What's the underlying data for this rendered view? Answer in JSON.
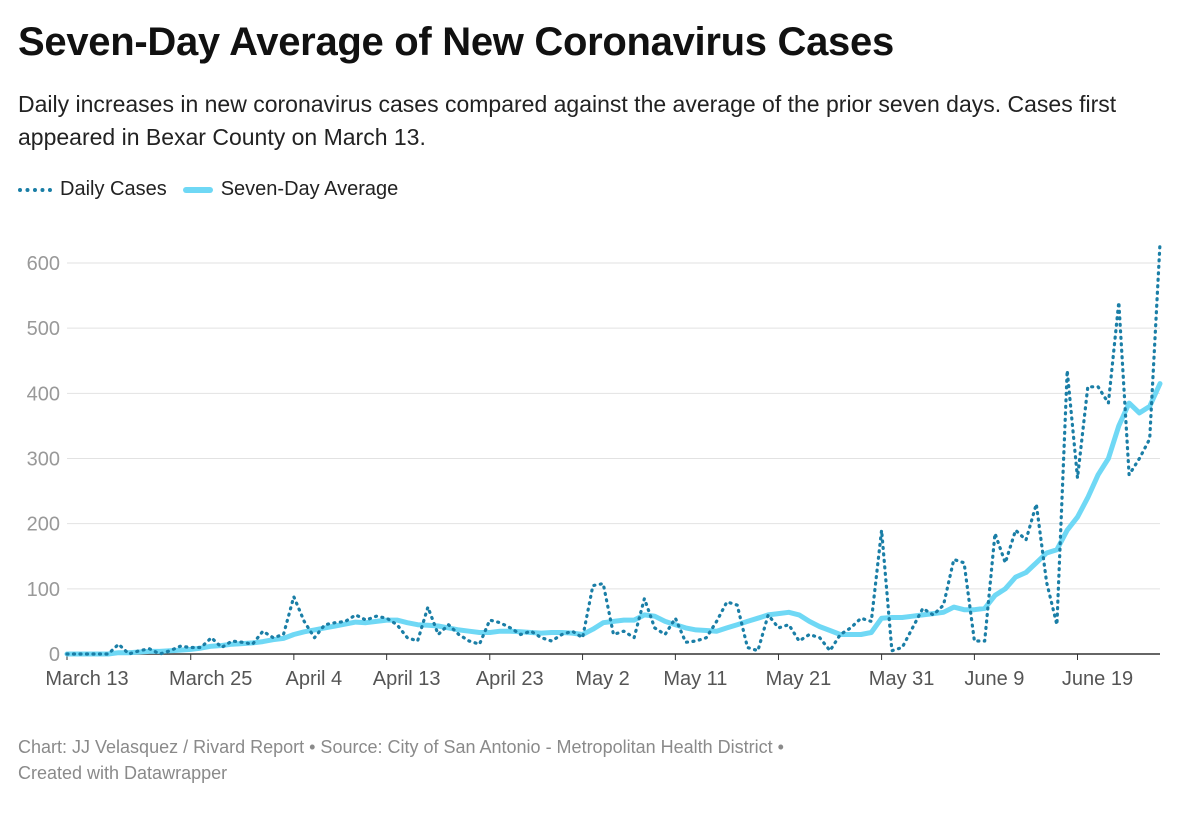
{
  "title": "Seven-Day Average of New Coronavirus Cases",
  "subtitle": "Daily increases in new coronavirus cases compared against the average of the prior seven days. Cases first appeared in Bexar County on March 13.",
  "legend": {
    "daily_label": "Daily Cases",
    "average_label": "Seven-Day Average"
  },
  "colors": {
    "daily": "#1a7ea6",
    "average": "#6fd8f5",
    "grid": "#e2e2e2",
    "tick_text": "#999999"
  },
  "footer": {
    "line1": "Chart: JJ Velasquez / Rivard Report • Source: City of San Antonio - Metropolitan Health District •",
    "line2": "Created with Datawrapper"
  },
  "chart_data": {
    "type": "line",
    "x_tick_labels": [
      "March 13",
      "March 25",
      "April 4",
      "April 13",
      "April 23",
      "May 2",
      "May 11",
      "May 21",
      "May 31",
      "June 9",
      "June 19"
    ],
    "x_tick_days": [
      0,
      12,
      22,
      31,
      41,
      50,
      59,
      69,
      79,
      88,
      98
    ],
    "y_ticks": [
      0,
      100,
      200,
      300,
      400,
      500,
      600
    ],
    "ylim": [
      0,
      640
    ],
    "grid": true,
    "legend_position": "top-left",
    "series": [
      {
        "name": "Daily Cases",
        "style": "dotted",
        "values": [
          0,
          0,
          0,
          0,
          0,
          15,
          0,
          5,
          8,
          0,
          5,
          12,
          10,
          10,
          25,
          10,
          20,
          18,
          15,
          35,
          25,
          30,
          88,
          50,
          25,
          45,
          48,
          50,
          60,
          52,
          58,
          55,
          45,
          25,
          20,
          72,
          30,
          45,
          30,
          20,
          15,
          52,
          48,
          40,
          30,
          35,
          25,
          20,
          30,
          35,
          25,
          105,
          108,
          30,
          35,
          25,
          85,
          40,
          30,
          55,
          18,
          20,
          25,
          50,
          80,
          75,
          10,
          5,
          60,
          40,
          45,
          20,
          30,
          25,
          5,
          30,
          40,
          55,
          50,
          190,
          5,
          10,
          40,
          70,
          60,
          75,
          145,
          140,
          20,
          20,
          185,
          140,
          190,
          175,
          230,
          110,
          45,
          435,
          270,
          410,
          410,
          385,
          540,
          275,
          300,
          330,
          630
        ],
        "values_note": ""
      },
      {
        "name": "Seven-Day Average",
        "style": "solid",
        "values": [
          0,
          0,
          0,
          0,
          0,
          2,
          2,
          3,
          4,
          4,
          5,
          6,
          7,
          9,
          12,
          13,
          15,
          16,
          17,
          19,
          22,
          24,
          30,
          34,
          37,
          40,
          43,
          46,
          49,
          48,
          50,
          52,
          52,
          48,
          45,
          44,
          43,
          40,
          37,
          35,
          33,
          33,
          35,
          35,
          34,
          33,
          32,
          33,
          33,
          32,
          30,
          38,
          48,
          50,
          52,
          52,
          60,
          58,
          50,
          45,
          40,
          37,
          36,
          35,
          40,
          45,
          50,
          55,
          60,
          62,
          64,
          60,
          50,
          42,
          36,
          30,
          30,
          30,
          33,
          55,
          56,
          56,
          58,
          60,
          62,
          64,
          72,
          68,
          68,
          70,
          90,
          100,
          118,
          125,
          140,
          155,
          160,
          190,
          210,
          240,
          275,
          300,
          350,
          385,
          370,
          380,
          415
        ]
      }
    ]
  }
}
